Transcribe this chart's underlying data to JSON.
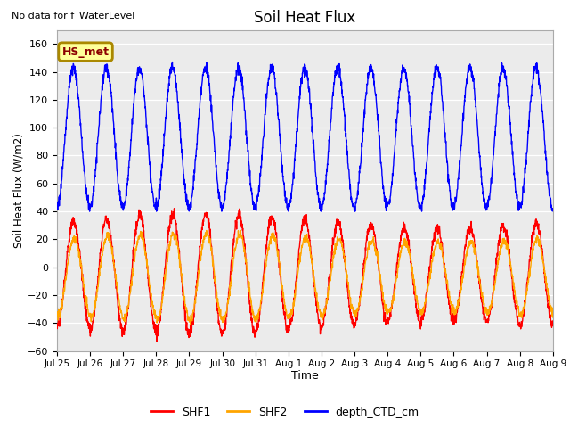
{
  "title": "Soil Heat Flux",
  "ylabel": "Soil Heat Flux (W/m2)",
  "xlabel": "Time",
  "top_left_text": "No data for f_WaterLevel",
  "annotation_box": "HS_met",
  "ylim": [
    -60,
    170
  ],
  "yticks": [
    -60,
    -40,
    -20,
    0,
    20,
    40,
    60,
    80,
    100,
    120,
    140,
    160
  ],
  "xtick_labels": [
    "Jul 25",
    "Jul 26",
    "Jul 27",
    "Jul 28",
    "Jul 29",
    "Jul 30",
    "Jul 31",
    "Aug 1",
    "Aug 2",
    "Aug 3",
    "Aug 4",
    "Aug 5",
    "Aug 6",
    "Aug 7",
    "Aug 8",
    "Aug 9"
  ],
  "plot_bg_color": "#ebebeb",
  "shf1_color": "#ff0000",
  "shf2_color": "#ffa500",
  "depth_color": "#0000ff",
  "legend_entries": [
    "SHF1",
    "SHF2",
    "depth_CTD_cm"
  ],
  "n_days": 15,
  "points_per_day": 144
}
